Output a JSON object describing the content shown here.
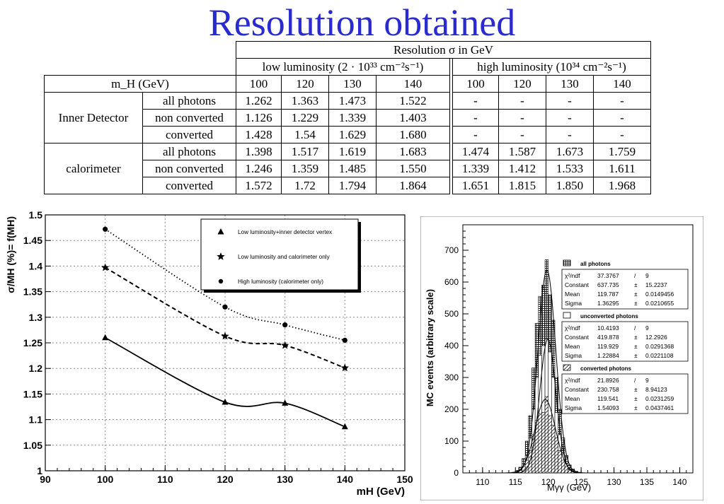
{
  "slide": {
    "title": "Resolution obtained"
  },
  "table": {
    "header_main": "Resolution σ in GeV",
    "low_lumi": "low luminosity (2 · 10³³ cm⁻²s⁻¹)",
    "high_lumi": "high luminosity (10³⁴ cm⁻²s⁻¹)",
    "mh_label": "m_H (GeV)",
    "masses": [
      "100",
      "120",
      "130",
      "140"
    ],
    "groups": [
      {
        "name": "Inner Detector",
        "rows": [
          {
            "label": "all photons",
            "low": [
              "1.262",
              "1.363",
              "1.473",
              "1.522"
            ],
            "high": [
              "-",
              "-",
              "-",
              "-"
            ]
          },
          {
            "label": "non converted",
            "low": [
              "1.126",
              "1.229",
              "1.339",
              "1.403"
            ],
            "high": [
              "-",
              "-",
              "-",
              "-"
            ]
          },
          {
            "label": "converted",
            "low": [
              "1.428",
              "1.54",
              "1.629",
              "1.680"
            ],
            "high": [
              "-",
              "-",
              "-",
              "-"
            ]
          }
        ]
      },
      {
        "name": "calorimeter",
        "rows": [
          {
            "label": "all photons",
            "low": [
              "1.398",
              "1.517",
              "1.619",
              "1.683"
            ],
            "high": [
              "1.474",
              "1.587",
              "1.673",
              "1.759"
            ]
          },
          {
            "label": "non converted",
            "low": [
              "1.246",
              "1.359",
              "1.485",
              "1.550"
            ],
            "high": [
              "1.339",
              "1.412",
              "1.533",
              "1.611"
            ]
          },
          {
            "label": "converted",
            "low": [
              "1.572",
              "1.72",
              "1.794",
              "1.864"
            ],
            "high": [
              "1.651",
              "1.815",
              "1.850",
              "1.968"
            ]
          }
        ]
      }
    ]
  },
  "chart_data": [
    {
      "type": "line",
      "xlabel": "m_H (GeV)",
      "ylabel": "σ/M_H (%)= f(M_H)",
      "xlim": [
        90,
        150
      ],
      "ylim": [
        1,
        1.5
      ],
      "xticks": [
        90,
        100,
        110,
        120,
        130,
        140,
        150
      ],
      "yticks": [
        1,
        1.05,
        1.1,
        1.15,
        1.2,
        1.25,
        1.3,
        1.35,
        1.4,
        1.45,
        1.5
      ],
      "grid": true,
      "legend_position": "top-right",
      "series": [
        {
          "name": "Low luminosity+inner detector vertex",
          "marker": "triangle",
          "line": "solid",
          "x": [
            100,
            120,
            130,
            140
          ],
          "y": [
            1.26,
            1.134,
            1.132,
            1.086
          ]
        },
        {
          "name": "Low luminosity and calorimeter only",
          "marker": "star",
          "line": "dashed",
          "x": [
            100,
            120,
            130,
            140
          ],
          "y": [
            1.397,
            1.263,
            1.245,
            1.201
          ]
        },
        {
          "name": "High luminosity (calorimeter only)",
          "marker": "circle",
          "line": "dotted",
          "x": [
            100,
            120,
            130,
            140
          ],
          "y": [
            1.472,
            1.32,
            1.285,
            1.255
          ]
        }
      ]
    },
    {
      "type": "bar",
      "xlabel": "M_γγ (GeV)",
      "ylabel": "MC events (arbitrary scale)",
      "xlim": [
        107,
        142
      ],
      "ylim": [
        0,
        780
      ],
      "xticks": [
        110,
        115,
        120,
        125,
        130,
        135,
        140
      ],
      "yticks": [
        0,
        100,
        200,
        300,
        400,
        500,
        600,
        700
      ],
      "bin_width": 0.5,
      "x": [
        114.75,
        115.25,
        115.75,
        116.25,
        116.75,
        117.25,
        117.75,
        118.25,
        118.75,
        119.25,
        119.75,
        120.25,
        120.75,
        121.25,
        121.75,
        122.25,
        122.75,
        123.25,
        123.75,
        124.25,
        124.75
      ],
      "series": [
        {
          "name": "all photons",
          "values": [
            2,
            8,
            18,
            45,
            100,
            180,
            330,
            470,
            555,
            590,
            670,
            560,
            480,
            300,
            200,
            110,
            55,
            25,
            12,
            5,
            2
          ]
        },
        {
          "name": "unconverted photons",
          "values": [
            1,
            5,
            10,
            25,
            55,
            110,
            200,
            300,
            370,
            400,
            420,
            380,
            300,
            190,
            120,
            60,
            30,
            12,
            6,
            3,
            1
          ]
        },
        {
          "name": "converted photons",
          "values": [
            1,
            3,
            8,
            20,
            40,
            70,
            120,
            165,
            185,
            190,
            240,
            180,
            150,
            110,
            70,
            40,
            20,
            10,
            5,
            2,
            1
          ]
        }
      ],
      "stats": [
        {
          "title": "all photons",
          "swatch": "dense-hatch",
          "rows": [
            {
              "k": "χ²/ndf",
              "v": "37.3767",
              "s": "/",
              "e": "9"
            },
            {
              "k": "Constant",
              "v": "637.735",
              "s": "±",
              "e": "15.2237"
            },
            {
              "k": "Mean",
              "v": "119.787",
              "s": "±",
              "e": "0.0149456"
            },
            {
              "k": "Sigma",
              "v": "1.36295",
              "s": "±",
              "e": "0.0210655"
            }
          ]
        },
        {
          "title": "unconverted photons",
          "swatch": "open",
          "rows": [
            {
              "k": "χ²/ndf",
              "v": "10.4193",
              "s": "/",
              "e": "9"
            },
            {
              "k": "Constant",
              "v": "419.878",
              "s": "±",
              "e": "12.2926"
            },
            {
              "k": "Mean",
              "v": "119.929",
              "s": "±",
              "e": "0.0291368"
            },
            {
              "k": "Sigma",
              "v": "1.22884",
              "s": "±",
              "e": "0.0221108"
            }
          ]
        },
        {
          "title": "converted photons",
          "swatch": "diag-hatch",
          "rows": [
            {
              "k": "χ²/ndf",
              "v": "21.8926",
              "s": "/",
              "e": "9"
            },
            {
              "k": "Constant",
              "v": "230.758",
              "s": "±",
              "e": "8.94123"
            },
            {
              "k": "Mean",
              "v": "119.541",
              "s": "±",
              "e": "0.0231259"
            },
            {
              "k": "Sigma",
              "v": "1.54093",
              "s": "±",
              "e": "0.0437461"
            }
          ]
        }
      ]
    }
  ]
}
